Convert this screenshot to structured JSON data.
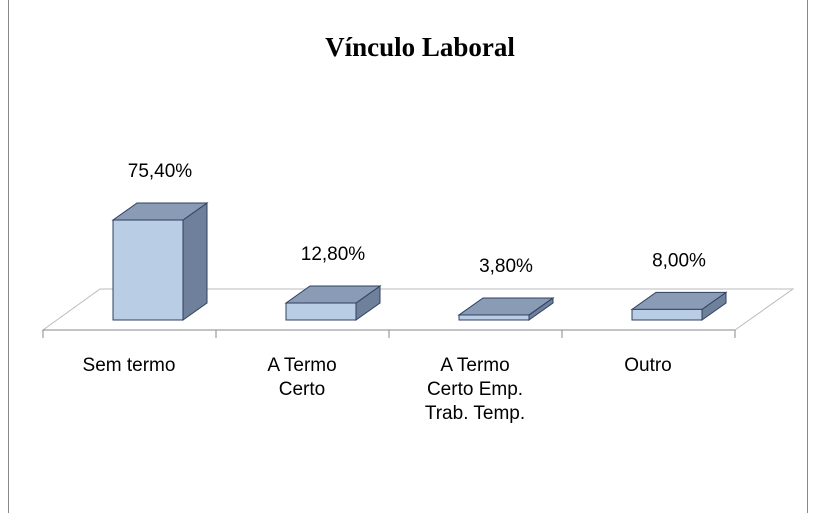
{
  "chart_data": {
    "type": "bar3d",
    "title": "Vínculo Laboral",
    "categories": [
      "Sem termo",
      "A Termo Certo",
      "A Termo Certo Emp. Trab. Temp.",
      "Outro"
    ],
    "values": [
      75.4,
      12.8,
      3.8,
      8.0
    ],
    "value_labels": [
      "75,40%",
      "12,80%",
      "3,80%",
      "8,00%"
    ],
    "color": "#b9cde5"
  }
}
